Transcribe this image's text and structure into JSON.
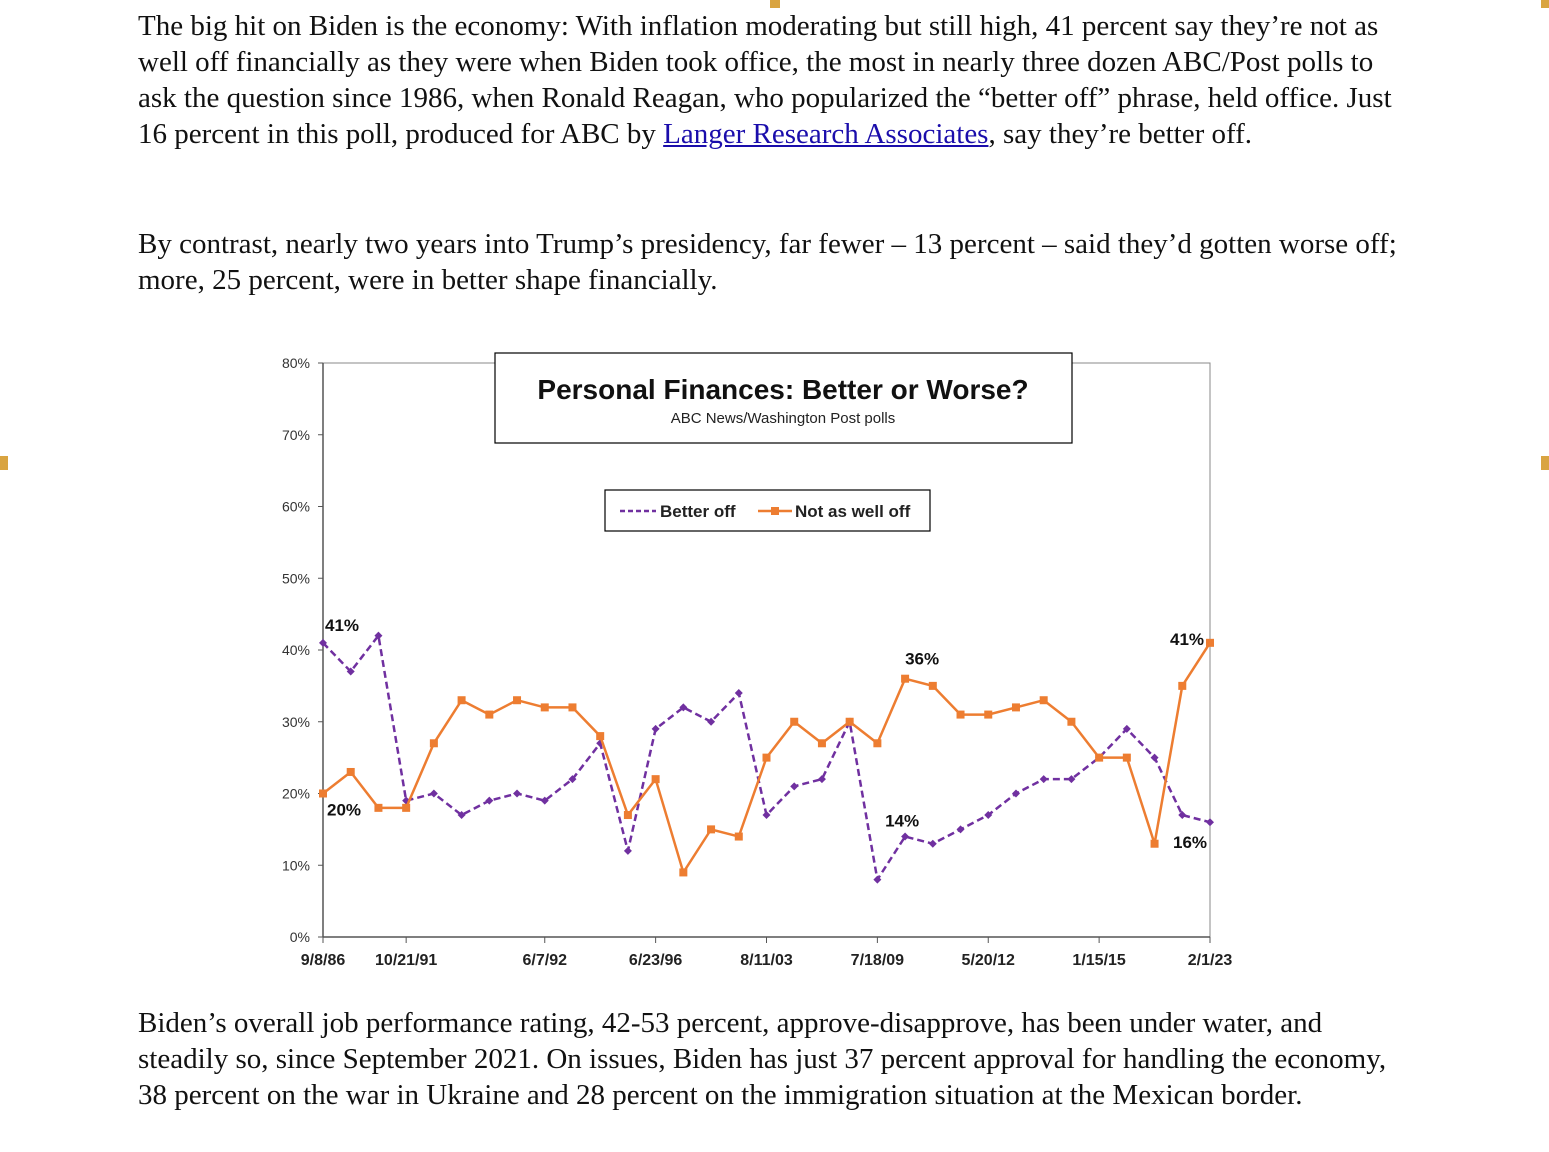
{
  "paragraphs": {
    "p1_before_link": "The big hit on Biden is the economy: With inflation moderating but still high, 41 percent say they’re not as well off financially as they were when Biden took office, the most in nearly three dozen ABC/Post polls to ask the question since 1986, when Ronald Reagan, who popularized the “better off” phrase, held office. Just 16 percent in this poll, produced for ABC by ",
    "p1_link": "Langer Research Associates",
    "p1_after_link": ", say they’re better off.",
    "p2": "By contrast, nearly two years into Trump’s presidency, far fewer – 13 percent – said they’d gotten worse off; more, 25 percent, were in better shape financially.",
    "p3": "Biden’s overall job performance rating, 42-53 percent, approve-disapprove, has been under water, and steadily so, since September 2021. On issues, Biden has just 37 percent approval for handling the economy, 38 percent on the war in Ukraine and 28 percent on the immigration situation at the Mexican border."
  },
  "chart_data": {
    "type": "line",
    "title": "Personal Finances: Better or Worse?",
    "subtitle": "ABC News/Washington  Post polls",
    "ylim": [
      0,
      80
    ],
    "yticks": [
      "0%",
      "10%",
      "20%",
      "30%",
      "40%",
      "50%",
      "60%",
      "70%",
      "80%"
    ],
    "xtick_labels": [
      {
        "index": 0,
        "label": "9/8/86"
      },
      {
        "index": 3,
        "label": "10/21/91"
      },
      {
        "index": 8,
        "label": "6/7/92"
      },
      {
        "index": 12,
        "label": "6/23/96"
      },
      {
        "index": 16,
        "label": "8/11/03"
      },
      {
        "index": 20,
        "label": "7/18/09"
      },
      {
        "index": 24,
        "label": "5/20/12"
      },
      {
        "index": 28,
        "label": "1/15/15"
      },
      {
        "index": 32,
        "label": "2/1/23"
      }
    ],
    "legend_position": "top-center",
    "series": [
      {
        "name": "Better off",
        "color": "#7030a0",
        "style": "dashed",
        "values": [
          41,
          37,
          42,
          19,
          20,
          17,
          19,
          20,
          19,
          22,
          27,
          12,
          29,
          32,
          30,
          34,
          17,
          21,
          22,
          30,
          8,
          14,
          13,
          15,
          17,
          20,
          22,
          22,
          25,
          29,
          25,
          17,
          16
        ]
      },
      {
        "name": "Not as well off",
        "color": "#ed7d31",
        "style": "solid",
        "values": [
          20,
          23,
          18,
          18,
          27,
          33,
          31,
          33,
          32,
          32,
          28,
          17,
          22,
          9,
          15,
          14,
          25,
          30,
          27,
          30,
          27,
          36,
          35,
          31,
          31,
          32,
          33,
          30,
          25,
          25,
          13,
          35,
          41
        ]
      }
    ],
    "annotations": [
      {
        "series": 0,
        "index": 0,
        "text": "41%"
      },
      {
        "series": 1,
        "index": 0,
        "text": "20%"
      },
      {
        "series": 1,
        "index": 21,
        "text": "36%"
      },
      {
        "series": 0,
        "index": 21,
        "text": "14%"
      },
      {
        "series": 1,
        "index": 32,
        "text": "41%"
      },
      {
        "series": 0,
        "index": 32,
        "text": "16%"
      }
    ]
  }
}
